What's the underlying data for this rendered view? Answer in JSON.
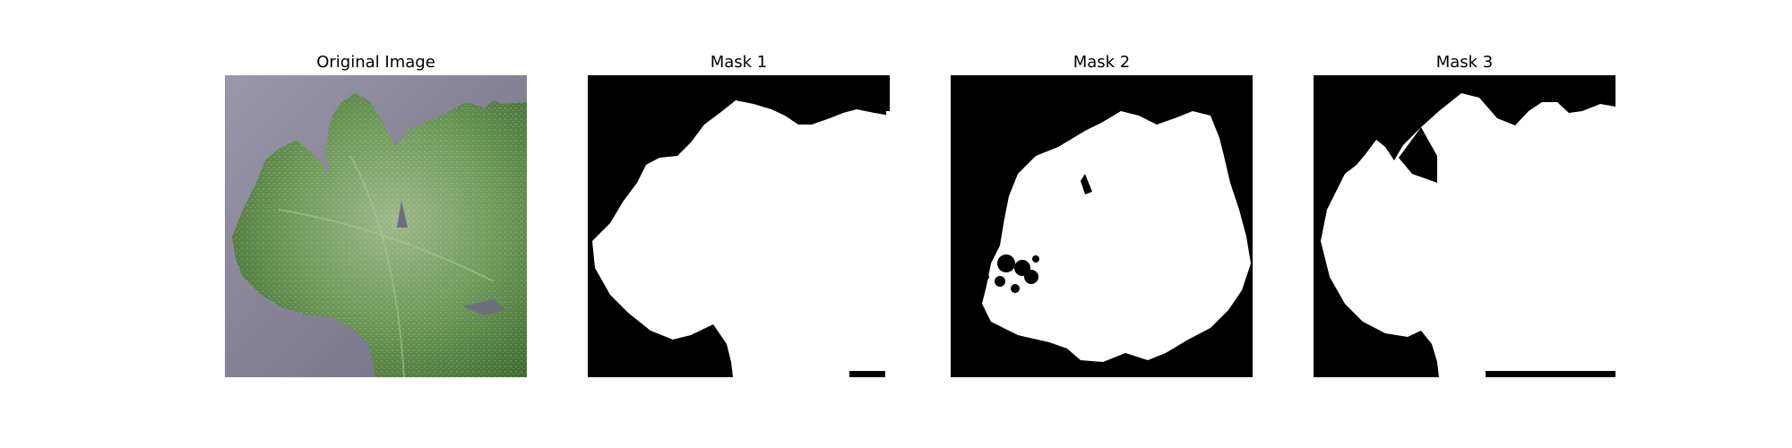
{
  "figure": {
    "panels": [
      {
        "title": "Original Image",
        "kind": "photo",
        "subject": "leaf-with-powdery-mildew"
      },
      {
        "title": "Mask 1",
        "kind": "binary-mask",
        "foreground": "#ffffff",
        "background": "#000000"
      },
      {
        "title": "Mask 2",
        "kind": "binary-mask",
        "foreground": "#ffffff",
        "background": "#000000"
      },
      {
        "title": "Mask 3",
        "kind": "binary-mask",
        "foreground": "#ffffff",
        "background": "#000000"
      }
    ],
    "colors": {
      "photo_background": "#8a879a",
      "leaf_dark": "#4f7a3c",
      "leaf_mid": "#6f9a5a",
      "mildew": "#c9d6c0"
    }
  }
}
